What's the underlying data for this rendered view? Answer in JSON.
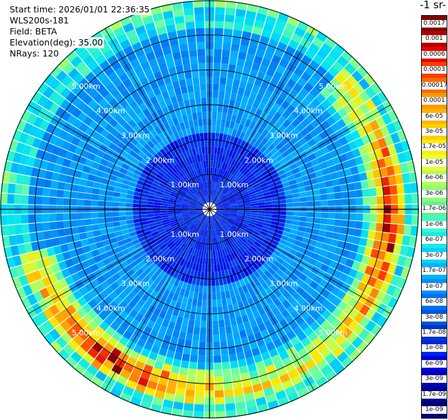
{
  "info": {
    "start_time": "Start time: 2026/01/01 22:36:35",
    "instrument": "WLS200s-181",
    "field": "Field: BETA",
    "elevation": "Elevation(deg): 35.00",
    "nrays": "NRays: 120"
  },
  "colorbar": {
    "unit_label": "-1 sr-",
    "labels": [
      "0.0017",
      "0.001",
      "0.0006",
      "0.0003",
      "0.00017",
      "0.0001",
      "6e-05",
      "3e-05",
      "1.7e-05",
      "1e-05",
      "6e-06",
      "3e-06",
      "1.7e-06",
      "1e-06",
      "6e-07",
      "3e-07",
      "1.7e-07",
      "1e-07",
      "6e-08",
      "3e-08",
      "1.7e-08",
      "1e-08",
      "6e-09",
      "3e-09",
      "1.7e-09",
      "1e-09"
    ],
    "colors": [
      "#800000",
      "#b40000",
      "#e60000",
      "#ff3b00",
      "#ff6a00",
      "#ff9900",
      "#ffb400",
      "#ffd000",
      "#ffee00",
      "#e6ff3c",
      "#b4ff5a",
      "#8cff78",
      "#66ee99",
      "#33ffcc",
      "#22e6e6",
      "#00d4ff",
      "#00b4ff",
      "#0090ff",
      "#0070ee",
      "#0055dd",
      "#0033cc",
      "#0022ee",
      "#0000dd",
      "#0000b4",
      "#000090",
      "#00006a"
    ]
  },
  "chart_data": {
    "type": "heatmap",
    "subtype": "ppi-polar",
    "field": "BETA",
    "elevation_deg": 35.0,
    "n_rays": 120,
    "range_rings_km": [
      1.0,
      2.0,
      3.0,
      4.0,
      5.0
    ],
    "ring_labels": [
      "1.00km",
      "2.00km",
      "3.00km",
      "4.00km",
      "5.00km"
    ],
    "max_range_km": 6.0,
    "background_color": "#0070ee",
    "aerosol_band": {
      "range_km": [
        4.3,
        5.6
      ],
      "azimuth_deg": [
        45,
        255
      ],
      "peak_value": "3e-05"
    }
  }
}
